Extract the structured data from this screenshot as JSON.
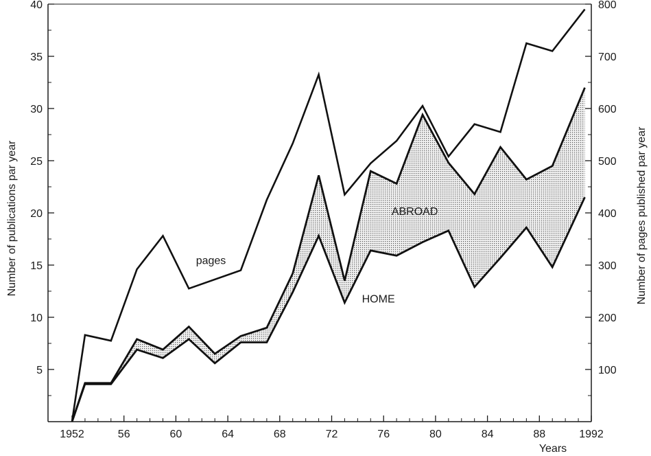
{
  "chart_data": {
    "type": "area",
    "xlabel": "Years",
    "ylabel_left": "Number of publications par year",
    "ylabel_right": "Number of pages published par year",
    "xlim": [
      1951,
      1992
    ],
    "ylim_left": [
      0,
      40
    ],
    "ylim_right": [
      0,
      800
    ],
    "x_ticks": [
      {
        "value": 1952,
        "label": "1952"
      },
      {
        "value": 1956,
        "label": "56"
      },
      {
        "value": 1960,
        "label": "60"
      },
      {
        "value": 1964,
        "label": "64"
      },
      {
        "value": 1968,
        "label": "68"
      },
      {
        "value": 1972,
        "label": "72"
      },
      {
        "value": 1976,
        "label": "76"
      },
      {
        "value": 1980,
        "label": "80"
      },
      {
        "value": 1984,
        "label": "84"
      },
      {
        "value": 1988,
        "label": "88"
      },
      {
        "value": 1992,
        "label": "1992"
      }
    ],
    "y_left_ticks": [
      {
        "value": 5,
        "label": "5"
      },
      {
        "value": 10,
        "label": "10"
      },
      {
        "value": 15,
        "label": "15"
      },
      {
        "value": 20,
        "label": "20"
      },
      {
        "value": 25,
        "label": "25"
      },
      {
        "value": 30,
        "label": "30"
      },
      {
        "value": 35,
        "label": "35"
      },
      {
        "value": 40,
        "label": "40"
      }
    ],
    "y_left_minor": [
      2.5,
      7.5,
      12.5,
      17.5,
      22.5,
      27.5,
      32.5,
      37.5
    ],
    "y_right_ticks": [
      {
        "value": 100,
        "label": "100"
      },
      {
        "value": 200,
        "label": "200"
      },
      {
        "value": 300,
        "label": "300"
      },
      {
        "value": 400,
        "label": "400"
      },
      {
        "value": 500,
        "label": "500"
      },
      {
        "value": 600,
        "label": "600"
      },
      {
        "value": 700,
        "label": "700"
      },
      {
        "value": 800,
        "label": "800"
      }
    ],
    "y_right_minor": [
      50,
      150,
      250,
      350,
      450,
      550,
      650,
      750
    ],
    "x_minor": [
      1953,
      1954,
      1955,
      1957,
      1958,
      1959,
      1961,
      1962,
      1963,
      1965,
      1966,
      1967,
      1969,
      1970,
      1971,
      1973,
      1974,
      1975,
      1977,
      1978,
      1979,
      1981,
      1982,
      1983,
      1985,
      1986,
      1987,
      1989,
      1990,
      1991
    ],
    "series": [
      {
        "name": "pages",
        "axis": "right",
        "x": [
          1952,
          1953,
          1955,
          1957,
          1959,
          1961,
          1965,
          1967,
          1969,
          1971,
          1973,
          1975,
          1977,
          1979,
          1981,
          1983,
          1985,
          1987,
          1989,
          1991.5
        ],
        "y": [
          0,
          166,
          155,
          292,
          356,
          255,
          290,
          425,
          533,
          665,
          435,
          495,
          538,
          605,
          508,
          570,
          555,
          725,
          710,
          790
        ]
      },
      {
        "name": "ABROAD",
        "axis": "left",
        "x": [
          1952,
          1953,
          1955,
          1957,
          1959,
          1961,
          1963,
          1965,
          1967,
          1969,
          1971,
          1973,
          1975,
          1977,
          1979,
          1981,
          1983,
          1985,
          1987,
          1989,
          1991.5
        ],
        "y": [
          0,
          3.7,
          3.7,
          7.9,
          6.9,
          9.1,
          6.5,
          8.2,
          9.0,
          14.2,
          23.6,
          13.5,
          24.0,
          22.8,
          29.4,
          24.8,
          21.8,
          26.3,
          23.2,
          24.5,
          32.0
        ]
      },
      {
        "name": "HOME",
        "axis": "left",
        "x": [
          1952,
          1953,
          1955,
          1957,
          1959,
          1961,
          1963,
          1965,
          1967,
          1969,
          1971,
          1973,
          1975,
          1977,
          1979,
          1981,
          1983,
          1985,
          1987,
          1989,
          1991.5
        ],
        "y": [
          0,
          3.6,
          3.6,
          6.9,
          6.1,
          7.9,
          5.6,
          7.6,
          7.6,
          12.4,
          17.8,
          11.4,
          16.4,
          15.9,
          17.2,
          18.3,
          12.9,
          15.7,
          18.6,
          14.8,
          21.5
        ]
      }
    ],
    "annotations": [
      {
        "text": "pages",
        "x": 1962.7,
        "y": 15.5
      },
      {
        "text": "ABROAD",
        "x": 1978.4,
        "y": 20.2
      },
      {
        "text": "HOME",
        "x": 1975.6,
        "y": 11.8
      }
    ]
  }
}
